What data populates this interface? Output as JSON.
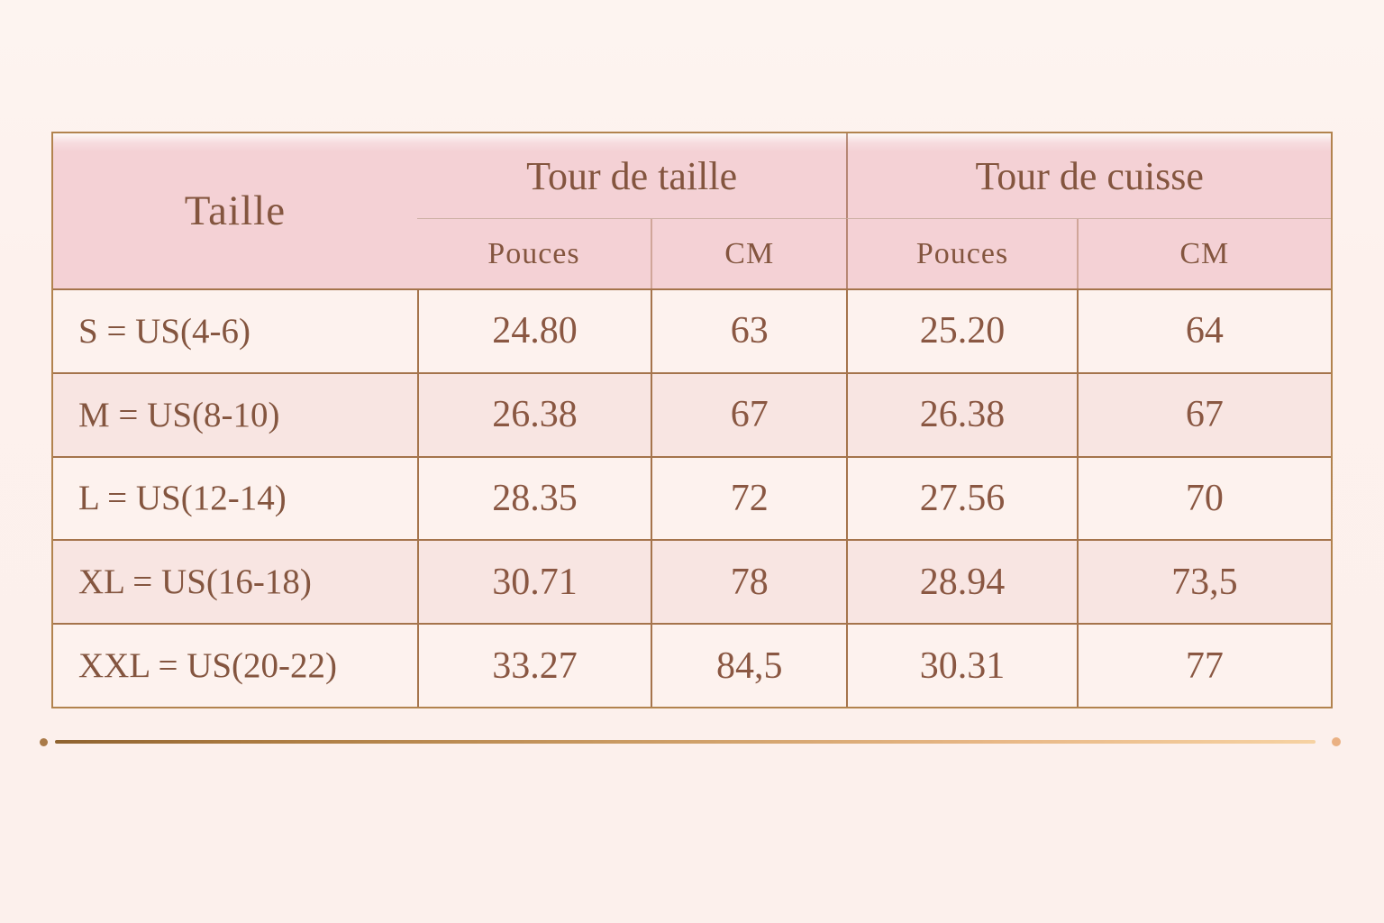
{
  "chart_data": {
    "type": "table",
    "columns": {
      "size": "Taille",
      "group_waist": "Tour de taille",
      "group_thigh": "Tour de cuisse",
      "inches": "Pouces",
      "cm": "CM"
    },
    "rows": [
      {
        "size": "S = US(4-6)",
        "waist_in": "24.80",
        "waist_cm": "63",
        "thigh_in": "25.20",
        "thigh_cm": "64"
      },
      {
        "size": "M = US(8-10)",
        "waist_in": "26.38",
        "waist_cm": "67",
        "thigh_in": "26.38",
        "thigh_cm": "67"
      },
      {
        "size": "L = US(12-14)",
        "waist_in": "28.35",
        "waist_cm": "72",
        "thigh_in": "27.56",
        "thigh_cm": "70"
      },
      {
        "size": "XL = US(16-18)",
        "waist_in": "30.71",
        "waist_cm": "78",
        "thigh_in": "28.94",
        "thigh_cm": "73,5"
      },
      {
        "size": "XXL = US(20-22)",
        "waist_in": "33.27",
        "waist_cm": "84,5",
        "thigh_in": "30.31",
        "thigh_cm": "77"
      }
    ]
  },
  "colors": {
    "background": "#fdf2ee",
    "header_pink": "#f4d1d5",
    "row_light": "#fdf2ee",
    "row_shade": "#f8e5e2",
    "border_outer": "#b2834e",
    "border_inner": "#a5744c",
    "text_brown": "#84553f",
    "divider_gold_dark": "#8f6330",
    "divider_gold_light": "#f6d2a2"
  }
}
